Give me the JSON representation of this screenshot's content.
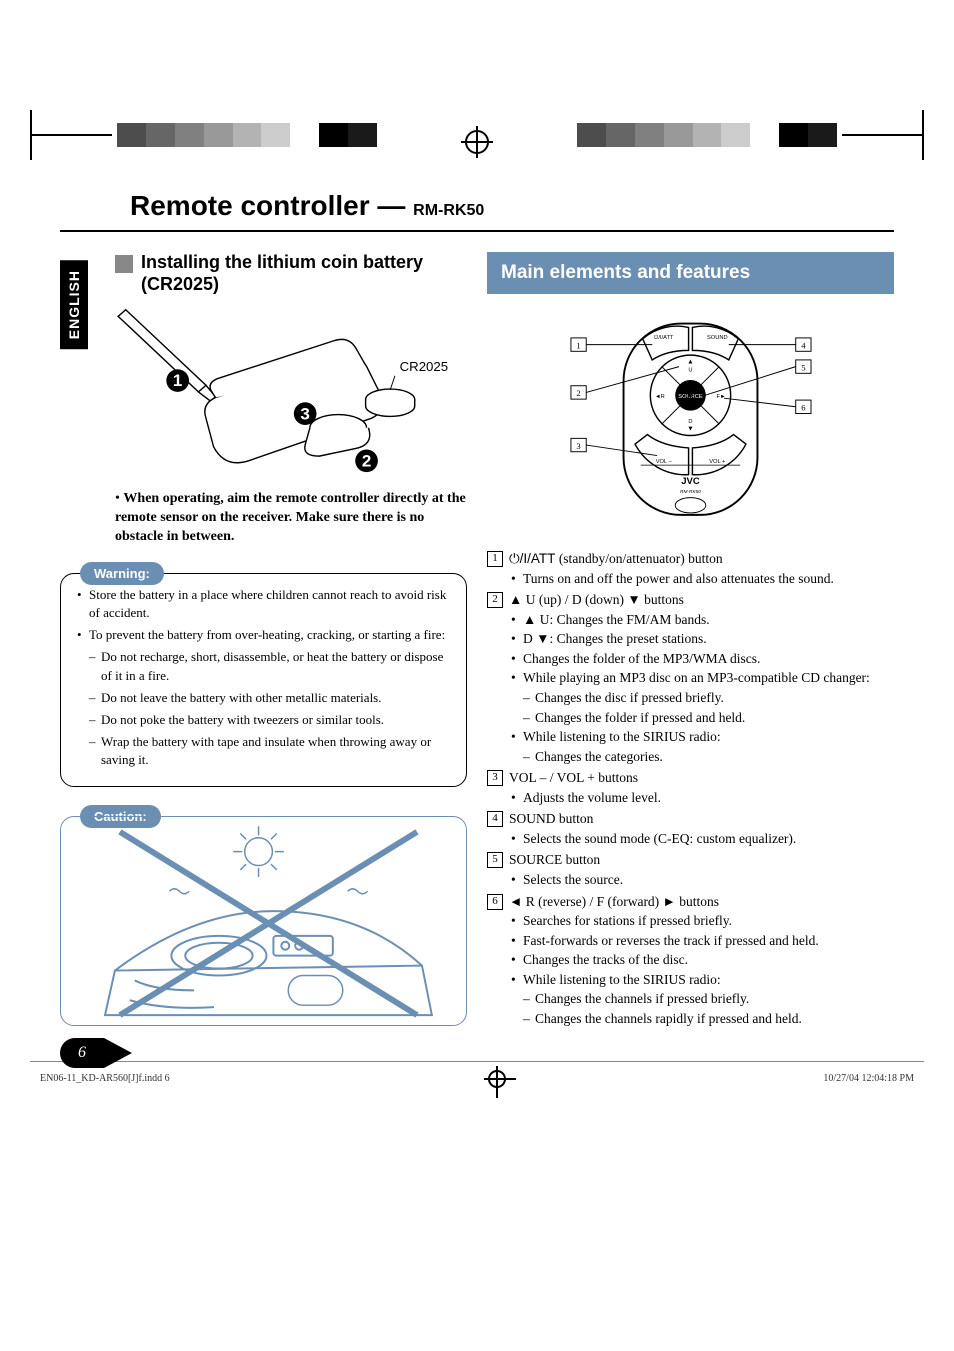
{
  "colors": {
    "accent": "#6b8fb3",
    "black": "#000000",
    "gray_sq": "#888888",
    "crop_bar": [
      "#4d4d4d",
      "#666666",
      "#808080",
      "#999999",
      "#b3b3b3",
      "#cccccc",
      "#ffffff",
      "#000000",
      "#1a1a1a"
    ]
  },
  "title": {
    "main": "Remote controller — ",
    "model": "RM-RK50"
  },
  "lang_tab": "ENGLISH",
  "install": {
    "heading": "Installing the lithium coin battery (CR2025)",
    "battery_label": "CR2025",
    "nums": [
      "1",
      "2",
      "3"
    ],
    "note": "When operating, aim the remote controller directly at the remote sensor on the receiver. Make sure there is no obstacle in between."
  },
  "warning": {
    "label": "Warning:",
    "items": [
      {
        "t": "Store the battery in a place where children cannot reach to avoid risk of accident."
      },
      {
        "t": "To prevent the battery from over-heating, cracking, or starting a fire:"
      },
      {
        "t": "Do not recharge, short, disassemble, or heat the battery or dispose of it in a fire.",
        "sub": true
      },
      {
        "t": "Do not leave the battery with other metallic materials.",
        "sub": true
      },
      {
        "t": "Do not poke the battery with tweezers or similar tools.",
        "sub": true
      },
      {
        "t": "Wrap the battery with tape and insulate when throwing away or saving it.",
        "sub": true
      }
    ]
  },
  "caution": {
    "label": "Caution:"
  },
  "features": {
    "header": "Main elements and features",
    "callouts": [
      "1",
      "2",
      "3",
      "4",
      "5",
      "6"
    ],
    "remote_labels": {
      "top_left": "/ATT",
      "top_right": "SOUND",
      "mid": "SOURCE",
      "u": "U",
      "d": "D",
      "r": "R",
      "f": "F",
      "vol_minus": "VOL –",
      "vol_plus": "VOL +",
      "brand": "JVC",
      "model": "RM-RK50"
    },
    "list": [
      {
        "num": "1",
        "head_pre": "",
        "head": " (standby/on/attenuator) button",
        "icon": "power",
        "bullets": [
          {
            "t": "Turns on and off the power and also attenuates the sound."
          }
        ]
      },
      {
        "num": "2",
        "head": "▲ U (up) / D (down) ▼ buttons",
        "bullets": [
          {
            "t": "▲ U: Changes the FM/AM bands."
          },
          {
            "t": "D ▼: Changes the preset stations."
          },
          {
            "t": "Changes the folder of the MP3/WMA discs."
          },
          {
            "t": "While playing an MP3 disc on an MP3-compatible CD changer:"
          },
          {
            "t": "Changes the disc if pressed briefly.",
            "sub": true
          },
          {
            "t": "Changes the folder if pressed and held.",
            "sub": true
          },
          {
            "t": "While listening to the SIRIUS radio:"
          },
          {
            "t": "Changes the categories.",
            "sub": true
          }
        ]
      },
      {
        "num": "3",
        "head": "VOL – / VOL + buttons",
        "bullets": [
          {
            "t": "Adjusts the volume level."
          }
        ]
      },
      {
        "num": "4",
        "head": "SOUND button",
        "bullets": [
          {
            "t": "Selects the sound mode (C-EQ: custom equalizer)."
          }
        ]
      },
      {
        "num": "5",
        "head": "SOURCE button",
        "bullets": [
          {
            "t": "Selects the source."
          }
        ]
      },
      {
        "num": "6",
        "head": "◄ R (reverse) / F (forward) ► buttons",
        "bullets": [
          {
            "t": "Searches for stations if pressed briefly."
          },
          {
            "t": "Fast-forwards or reverses the track if pressed and held."
          },
          {
            "t": "Changes the tracks of the disc."
          },
          {
            "t": "While listening to the SIRIUS radio:"
          },
          {
            "t": "Changes the channels if pressed briefly.",
            "sub": true
          },
          {
            "t": "Changes the channels rapidly if pressed and held.",
            "sub": true
          }
        ]
      }
    ]
  },
  "page_number": "6",
  "footer": {
    "left": "EN06-11_KD-AR560[J]f.indd   6",
    "right": "10/27/04   12:04:18 PM"
  }
}
